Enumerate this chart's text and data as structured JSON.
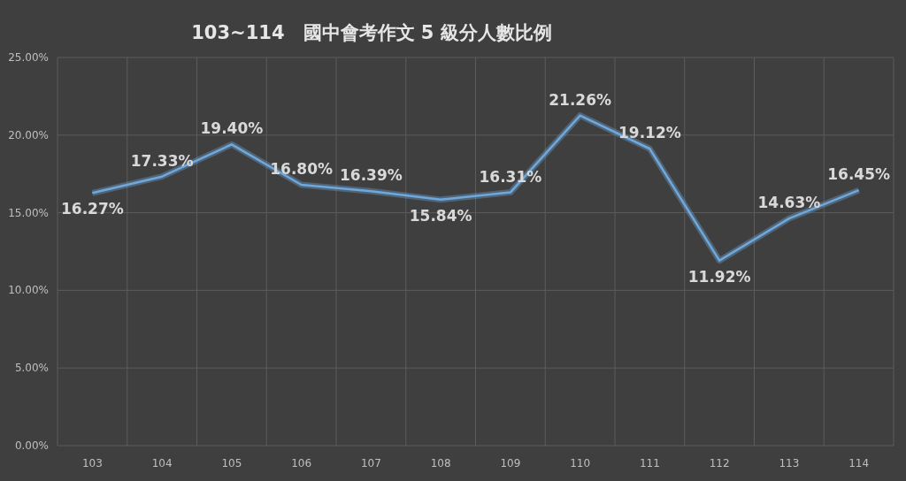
{
  "chart_data": {
    "type": "line",
    "title": "103~114　國中會考作文 5 級分人數比例",
    "categories": [
      "103",
      "104",
      "105",
      "106",
      "107",
      "108",
      "109",
      "110",
      "111",
      "112",
      "113",
      "114"
    ],
    "values": [
      16.27,
      17.33,
      19.4,
      16.8,
      16.39,
      15.84,
      16.31,
      21.26,
      19.12,
      11.92,
      14.63,
      16.45
    ],
    "value_labels": [
      "16.27%",
      "17.33%",
      "19.40%",
      "16.80%",
      "16.39%",
      "15.84%",
      "16.31%",
      "21.26%",
      "19.12%",
      "11.92%",
      "14.63%",
      "16.45%"
    ],
    "color": "#6fa8dc",
    "ylim": [
      0,
      25
    ],
    "yticks": [
      {
        "value": 0,
        "label": "0.00%"
      },
      {
        "value": 5,
        "label": "5.00%"
      },
      {
        "value": 10,
        "label": "10.00%"
      },
      {
        "value": 15,
        "label": "15.00%"
      },
      {
        "value": 20,
        "label": "20.00%"
      },
      {
        "value": 25,
        "label": "25.00%"
      }
    ],
    "grid": true
  }
}
